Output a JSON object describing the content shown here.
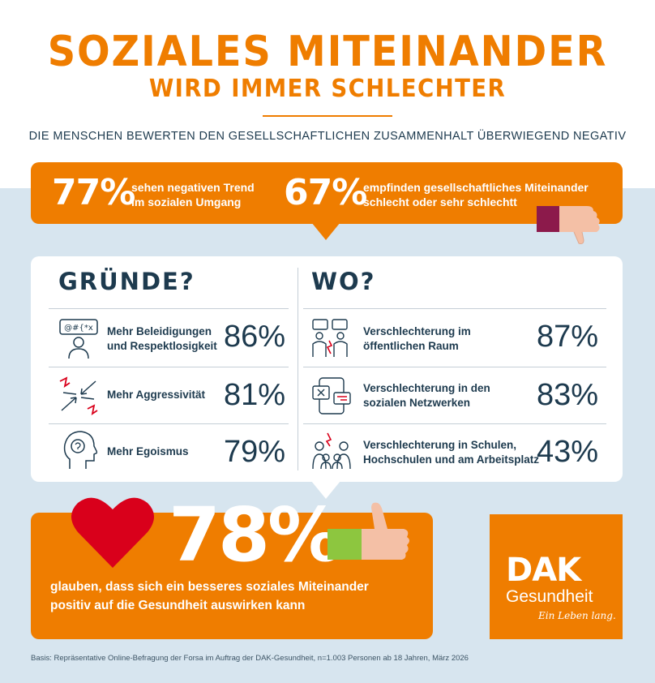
{
  "header": {
    "title": "SOZIALES MITEINANDER",
    "subtitle": "WIRD IMMER SCHLECHTER",
    "tagline": "DIE MENSCHEN BEWERTEN DEN GESELLSCHAFTLICHEN ZUSAMMENHALT ÜBERWIEGEND NEGATIV"
  },
  "banner": {
    "stat1_value": "77%",
    "stat1_line1": "sehen negativen Trend",
    "stat1_line2": "im sozialen Umgang",
    "stat2_value": "67%",
    "stat2_line1": "empfinden gesellschaftliches Miteinander",
    "stat2_line2": "schlecht oder sehr schlechtt",
    "icon": "thumbs-down-icon"
  },
  "reasons": {
    "heading": "GRÜNDE?",
    "items": [
      {
        "line1": "Mehr Beleidigungen",
        "line2": "und Respektlosigkeit",
        "value": "86%",
        "icon": "insult-speech-icon",
        "icon_text": "@#{*x"
      },
      {
        "line1": "Mehr Aggressivität",
        "line2": "",
        "value": "81%",
        "icon": "aggression-arrows-icon"
      },
      {
        "line1": "Mehr Egoismus",
        "line2": "",
        "value": "79%",
        "icon": "ego-head-icon"
      }
    ]
  },
  "places": {
    "heading": "WO?",
    "items": [
      {
        "line1": "Verschlechterung im",
        "line2": "öffentlichen Raum",
        "value": "87%",
        "icon": "public-space-people-icon"
      },
      {
        "line1": "Verschlechterung in den",
        "line2": "sozialen Netzwerken",
        "value": "83%",
        "icon": "social-network-phone-icon"
      },
      {
        "line1": "Verschlechterung in Schulen,",
        "line2": "Hochschulen und am Arbeitsplatz",
        "value": "43%",
        "icon": "school-work-conflict-icon"
      }
    ]
  },
  "bottom": {
    "value": "78%",
    "line1": "glauben, dass sich ein besseres soziales Miteinander",
    "line2": "positiv auf die Gesundheit auswirken kann",
    "icons": [
      "heart-icon",
      "thumbs-up-icon"
    ]
  },
  "logo": {
    "word": "DAK",
    "sub": "Gesundheit",
    "slogan": "Ein Leben lang."
  },
  "footnote": "Basis: Repräsentative Online-Befragung der Forsa im Auftrag der DAK-Gesundheit, n=1.003 Personen ab 18 Jahren, März 2026",
  "colors": {
    "orange": "#ef7d00",
    "navy": "#1d3a4e",
    "light_blue": "#d7e5ef",
    "heart_red": "#d9001b",
    "sleeve_purple": "#8c1a4b",
    "sleeve_green": "#8dc63f"
  }
}
